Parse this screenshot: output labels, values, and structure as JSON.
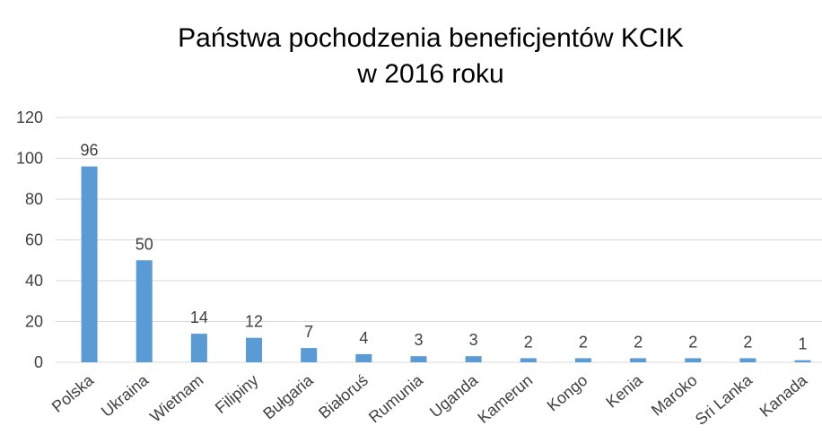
{
  "chart_data": {
    "type": "bar",
    "title": [
      "Państwa pochodzenia beneficjentów KCIK",
      "w 2016 roku"
    ],
    "categories": [
      "Polska",
      "Ukraina",
      "Wietnam",
      "Filipiny",
      "Bułgaria",
      "Białoruś",
      "Rumunia",
      "Uganda",
      "Kamerun",
      "Kongo",
      "Kenia",
      "Maroko",
      "Sri Lanka",
      "Kanada"
    ],
    "values": [
      96,
      50,
      14,
      12,
      7,
      4,
      3,
      3,
      2,
      2,
      2,
      2,
      2,
      1
    ],
    "color": "#5b9bd5",
    "ylim": [
      0,
      120
    ],
    "yticks": [
      0,
      20,
      40,
      60,
      80,
      100,
      120
    ],
    "grid": true
  }
}
